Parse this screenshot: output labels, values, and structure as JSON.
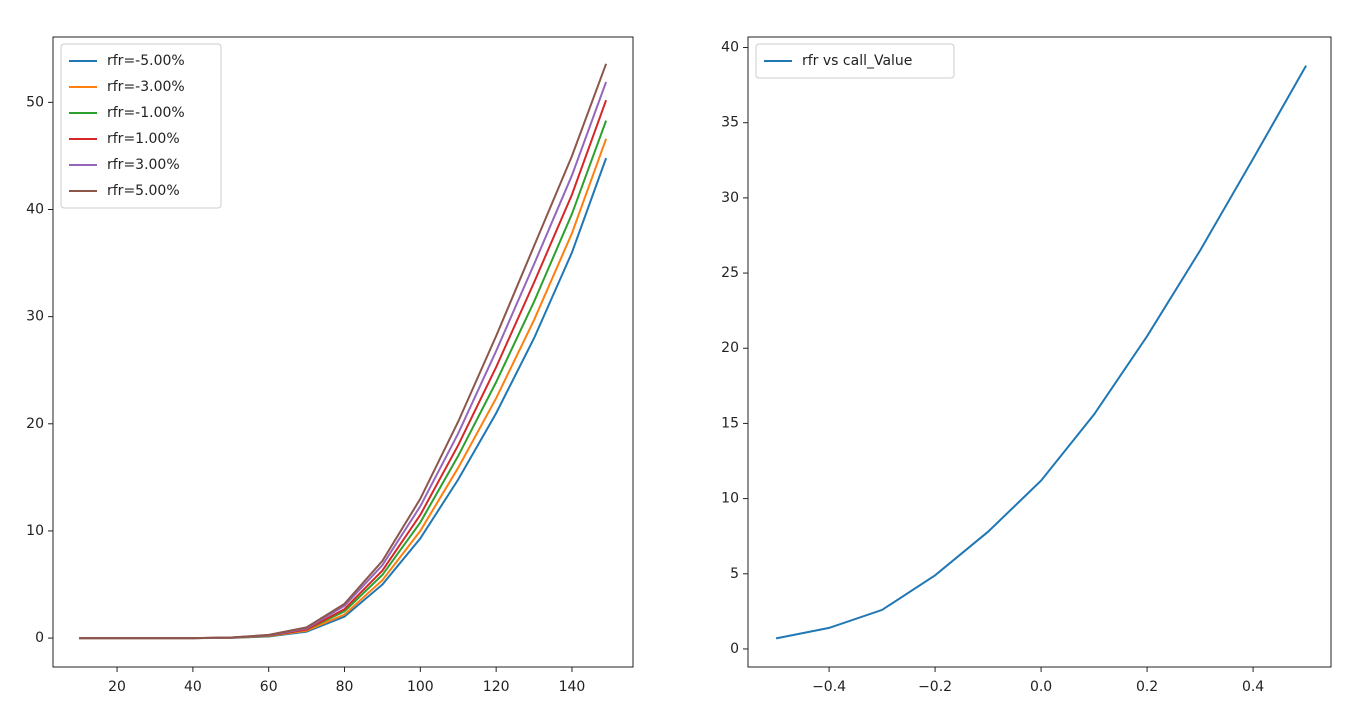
{
  "chart_data": [
    {
      "type": "line",
      "x": [
        10,
        20,
        30,
        40,
        50,
        60,
        70,
        80,
        90,
        100,
        110,
        120,
        130,
        140,
        149
      ],
      "series": [
        {
          "name": "rfr=-5.00%",
          "color": "#1f77b4",
          "values": [
            0,
            0,
            0,
            0,
            0.02,
            0.15,
            0.6,
            2.0,
            5.0,
            9.3,
            14.8,
            21.0,
            28.0,
            36.0,
            44.8
          ]
        },
        {
          "name": "rfr=-3.00%",
          "color": "#ff7f0e",
          "values": [
            0,
            0,
            0,
            0,
            0.03,
            0.18,
            0.7,
            2.2,
            5.4,
            10.0,
            15.9,
            22.4,
            29.7,
            37.8,
            46.6
          ]
        },
        {
          "name": "rfr=-1.00%",
          "color": "#2ca02c",
          "values": [
            0,
            0,
            0,
            0,
            0.03,
            0.21,
            0.8,
            2.5,
            5.9,
            10.8,
            17.0,
            23.9,
            31.4,
            39.6,
            48.3
          ]
        },
        {
          "name": "rfr=1.00%",
          "color": "#d62728",
          "values": [
            0,
            0,
            0,
            0,
            0.04,
            0.24,
            0.8,
            2.7,
            6.3,
            11.5,
            18.0,
            25.3,
            33.2,
            41.4,
            50.2
          ]
        },
        {
          "name": "rfr=3.00%",
          "color": "#9467bd",
          "values": [
            0,
            0,
            0,
            0,
            0.04,
            0.27,
            0.9,
            3.0,
            6.8,
            12.3,
            19.1,
            26.8,
            34.9,
            43.2,
            51.9
          ]
        },
        {
          "name": "rfr=5.00%",
          "color": "#8c564b",
          "values": [
            0,
            0,
            0,
            0,
            0.05,
            0.3,
            1.0,
            3.2,
            7.2,
            13.0,
            20.2,
            28.2,
            36.6,
            45.0,
            53.6
          ]
        }
      ],
      "xlim": [
        3.1,
        156.1
      ],
      "xticks": [
        20,
        40,
        60,
        80,
        100,
        120,
        140
      ],
      "ylim": [
        -2.7,
        56.1
      ],
      "yticks": [
        0,
        10,
        20,
        30,
        40,
        50
      ],
      "legend": "upper left"
    },
    {
      "type": "line",
      "x": [
        -0.5,
        -0.4,
        -0.3,
        -0.2,
        -0.1,
        0.0,
        0.1,
        0.2,
        0.3,
        0.4,
        0.5
      ],
      "series": [
        {
          "name": "rfr vs call_Value",
          "color": "#1f77b4",
          "values": [
            0.7,
            1.4,
            2.6,
            4.9,
            7.8,
            11.2,
            15.6,
            20.8,
            26.5,
            32.6,
            38.8
          ]
        }
      ],
      "xlim": [
        -0.553,
        0.547
      ],
      "xticks": [
        {
          "value": -0.4,
          "label": "−0.4"
        },
        {
          "value": -0.2,
          "label": "−0.2"
        },
        {
          "value": 0,
          "label": "0.0"
        },
        0.2,
        0.4
      ],
      "ylim": [
        -1.2,
        40.7
      ],
      "yticks": [
        0,
        5,
        10,
        15,
        20,
        25,
        30,
        35,
        40
      ],
      "legend": "upper left"
    }
  ]
}
